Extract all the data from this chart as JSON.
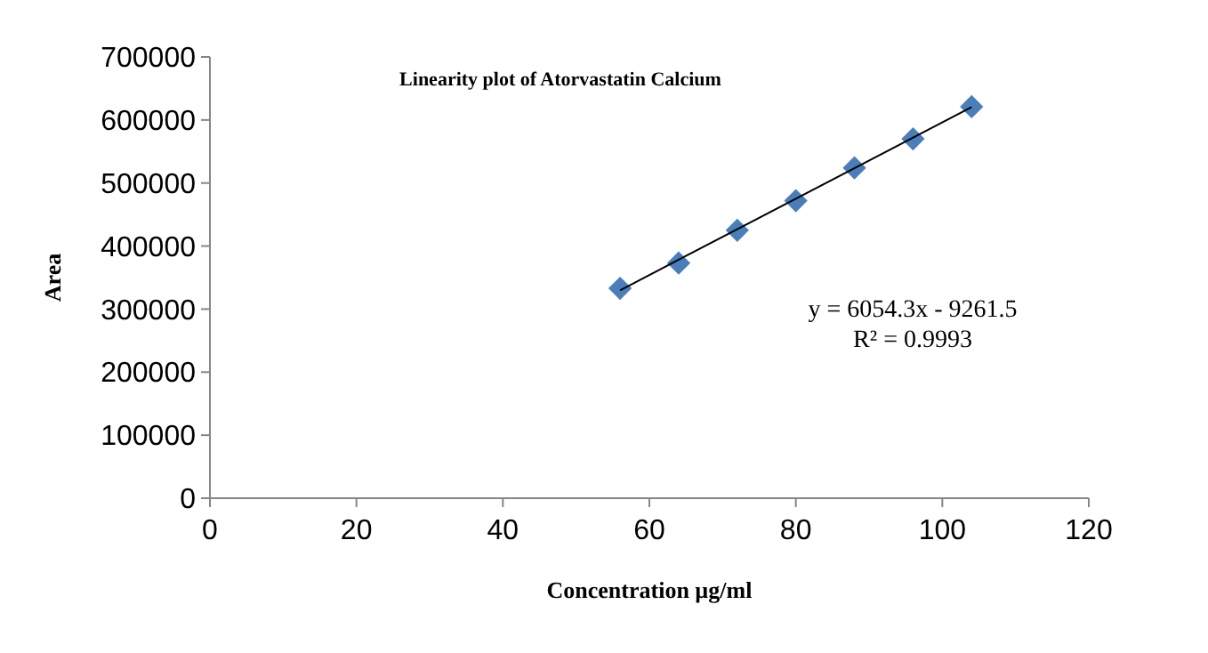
{
  "chart_data": {
    "type": "scatter",
    "title": "Linearity plot of Atorvastatin Calcium",
    "xlabel": "Concentration µg/ml",
    "ylabel": "Area",
    "x": [
      56,
      64,
      72,
      80,
      88,
      96,
      104
    ],
    "series": [
      {
        "color": "#4a7ebb",
        "marker": "diamond",
        "values": [
          333000,
          373000,
          425000,
          472000,
          524000,
          570000,
          621000
        ]
      },
      {
        "type": "line",
        "color": "#000000",
        "x": [
          56,
          104
        ],
        "values": [
          329800,
          620400
        ],
        "marker": "none",
        "line_style": "solid"
      }
    ],
    "annotations": [
      {
        "text": "y = 6054.3x - 9261.5"
      },
      {
        "text": "R² = 0.9993"
      }
    ],
    "xlim": [
      0,
      120
    ],
    "xticks": [
      0,
      20,
      40,
      60,
      80,
      100,
      120
    ],
    "ylim": [
      0,
      700000
    ],
    "yticks": [
      0,
      100000,
      200000,
      300000,
      400000,
      500000,
      600000,
      700000
    ],
    "grid": false
  }
}
